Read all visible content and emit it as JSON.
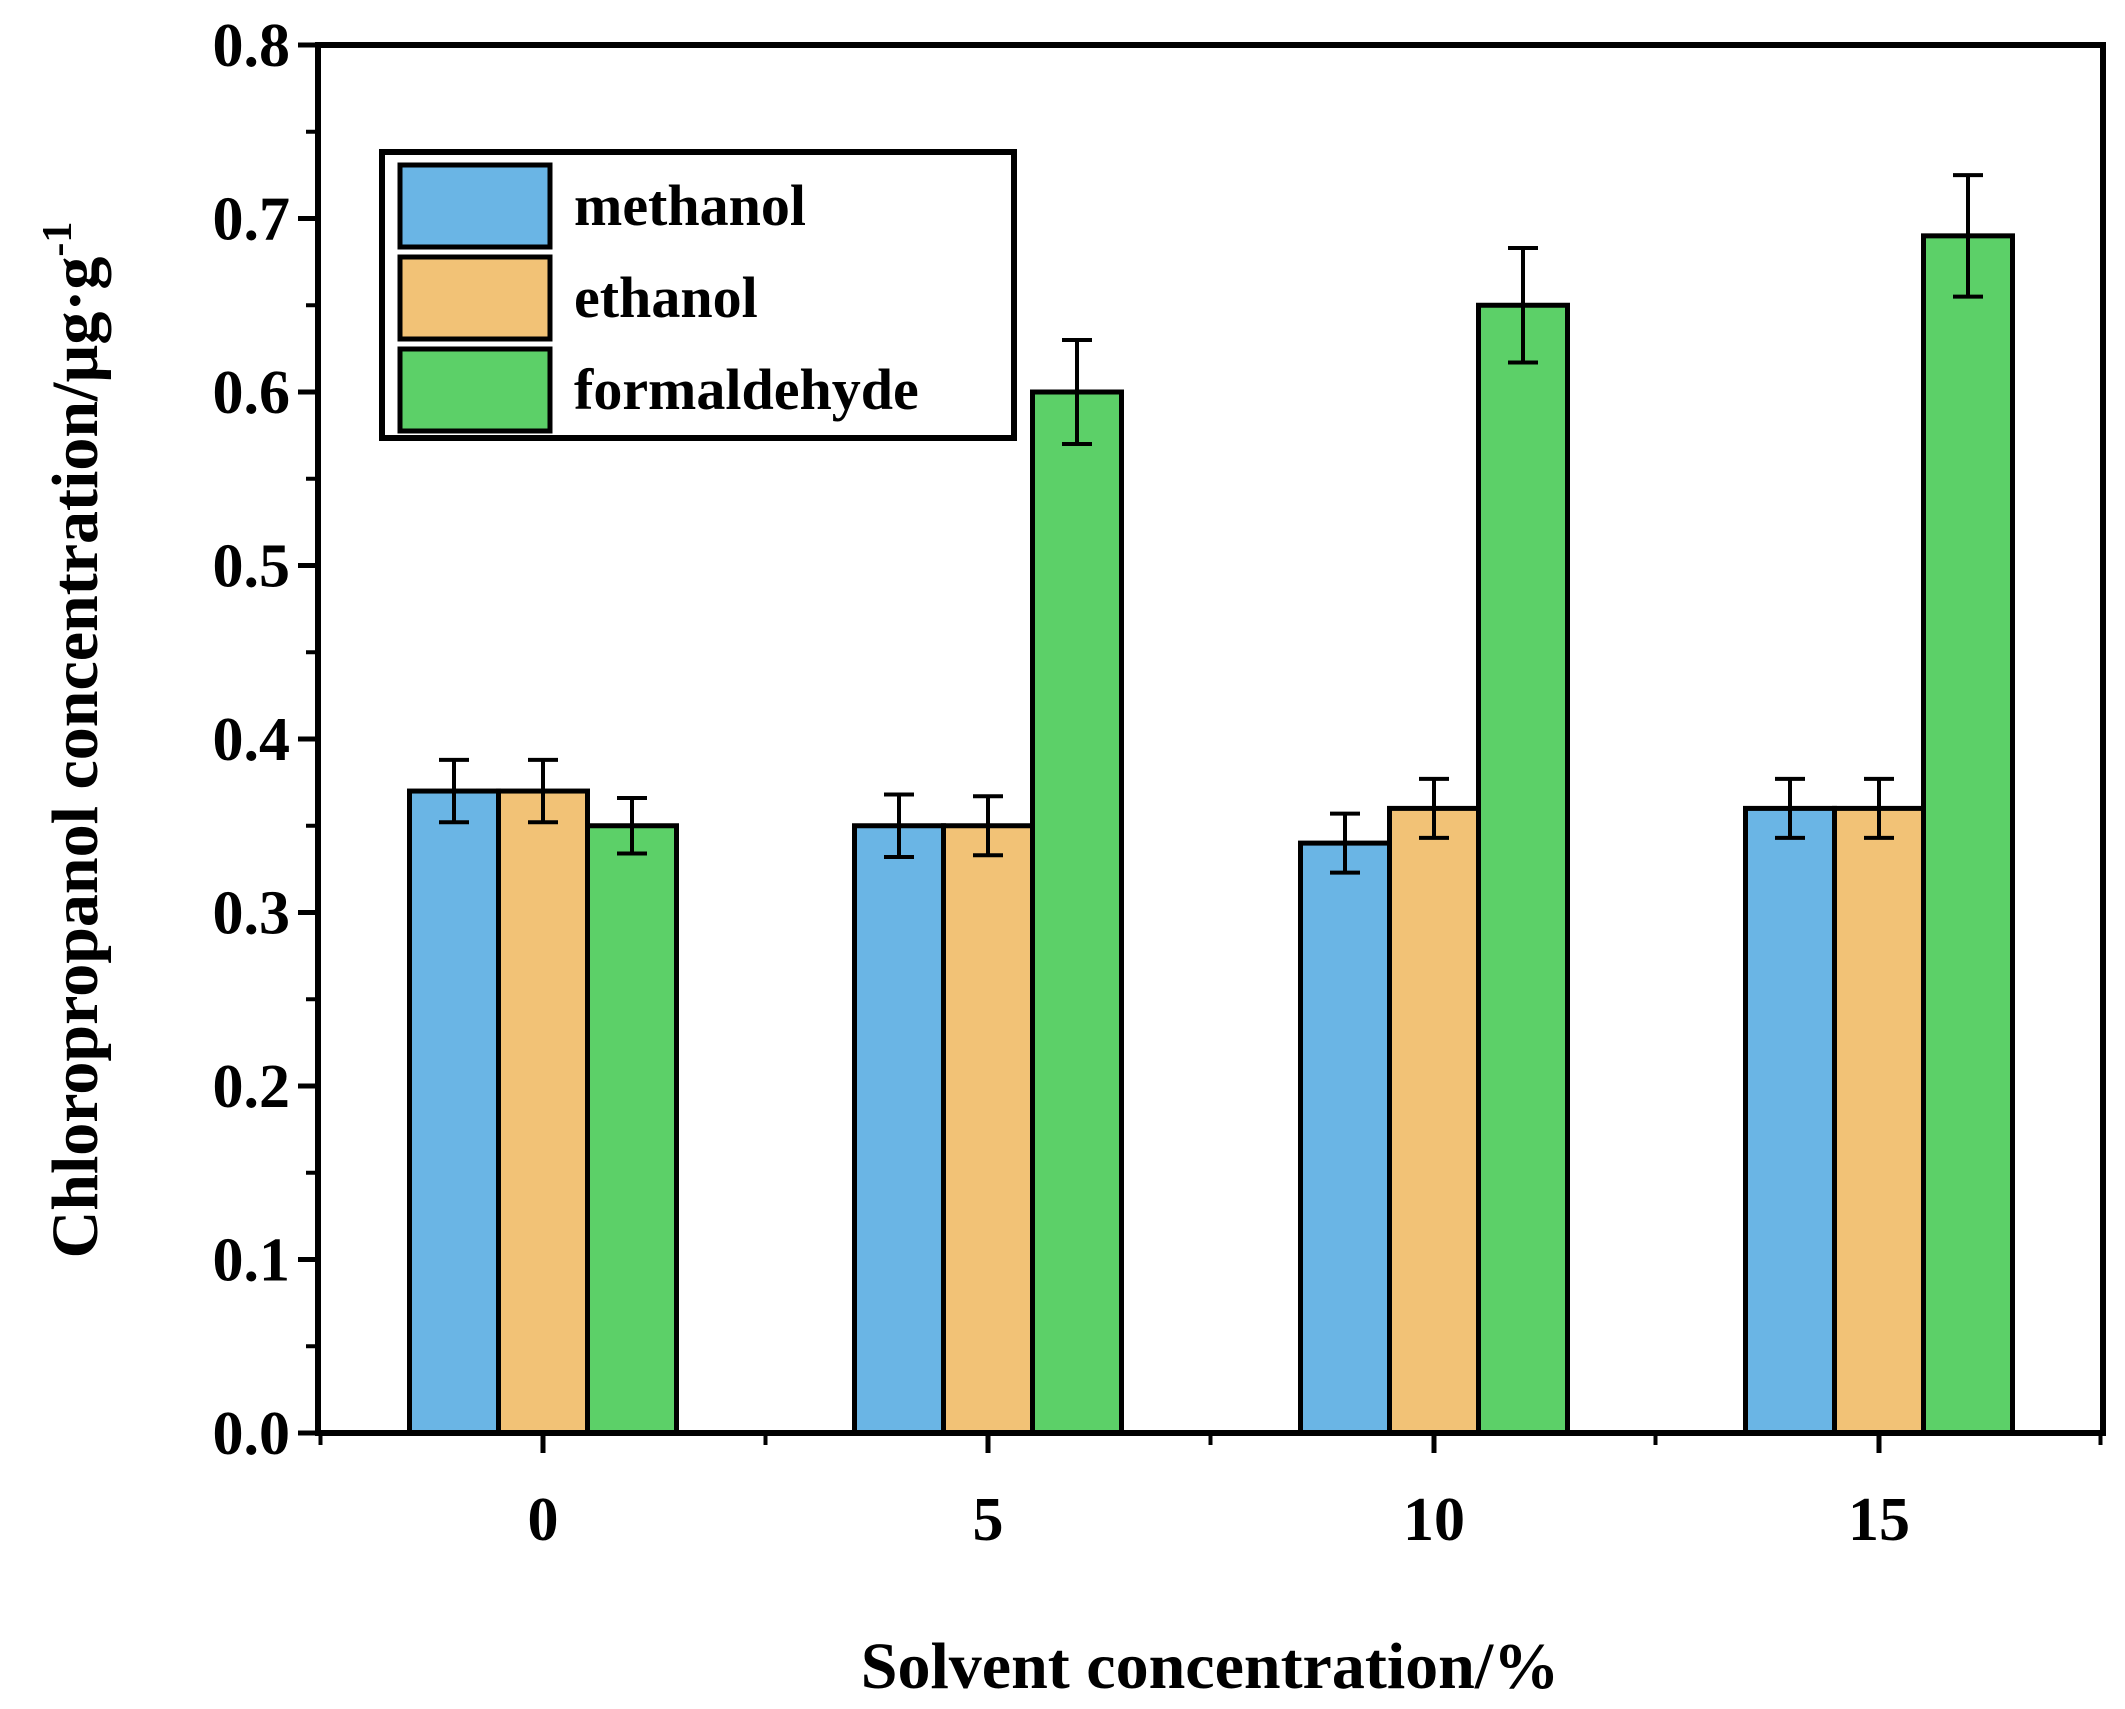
{
  "chart_data": {
    "type": "bar",
    "title": "",
    "xlabel": "Solvent concentration/%",
    "ylabel": "Chloropropanol concentration/µg·g",
    "ylabel_superscript": "-1",
    "categories": [
      "0",
      "5",
      "10",
      "15"
    ],
    "ylim": [
      0.0,
      0.8
    ],
    "yticks": [
      "0.0",
      "0.1",
      "0.2",
      "0.3",
      "0.4",
      "0.5",
      "0.6",
      "0.7",
      "0.8"
    ],
    "grid": false,
    "legend_position": "top-left",
    "series": [
      {
        "name": "methanol",
        "color": "#6ab5e5",
        "values": [
          0.37,
          0.35,
          0.34,
          0.36
        ],
        "errors": [
          0.018,
          0.018,
          0.017,
          0.017
        ]
      },
      {
        "name": "ethanol",
        "color": "#f2c276",
        "values": [
          0.37,
          0.35,
          0.36,
          0.36
        ],
        "errors": [
          0.018,
          0.017,
          0.017,
          0.017
        ]
      },
      {
        "name": "formaldehyde",
        "color": "#5cd068",
        "values": [
          0.35,
          0.6,
          0.65,
          0.69
        ],
        "errors": [
          0.016,
          0.03,
          0.033,
          0.035
        ]
      }
    ]
  }
}
